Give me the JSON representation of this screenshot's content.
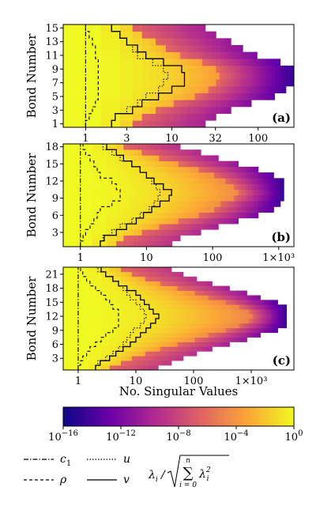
{
  "chart_data": [
    {
      "type": "heatmap",
      "panel_label": "(a)",
      "ylabel": "Bond Number",
      "xscale": "log",
      "xlim": [
        0.55,
        260
      ],
      "ylim": [
        1,
        15
      ],
      "yticks": [
        "1",
        "3",
        "5",
        "7",
        "9",
        "11",
        "13",
        "15"
      ],
      "xticks": [
        {
          "v": 1,
          "label": "1"
        },
        {
          "v": 3,
          "label": "3"
        },
        {
          "v": 10,
          "label": "10"
        },
        {
          "v": 32,
          "label": "32"
        },
        {
          "v": 100,
          "label": "100"
        }
      ],
      "bonds": 15,
      "max_rank": 256,
      "series": {
        "c1": [
          1,
          1,
          1,
          1,
          1,
          1,
          1,
          1,
          1,
          1,
          1,
          1,
          1,
          1,
          1
        ],
        "rho": [
          1,
          1.1,
          1.2,
          1.3,
          1.4,
          1.4,
          1.4,
          1.4,
          1.4,
          1.4,
          1.3,
          1.3,
          1.2,
          1.1,
          1
        ],
        "u": [
          2,
          2.2,
          3,
          4,
          5,
          7,
          8,
          9,
          8,
          6,
          4,
          3.5,
          3,
          2.5,
          2
        ],
        "v": [
          2,
          2.2,
          3.5,
          4.5,
          7,
          10,
          14,
          14,
          13,
          8,
          5,
          4,
          3,
          2.5,
          2
        ],
        "p": [
          3,
          4,
          6,
          10,
          18,
          25,
          32,
          35,
          32,
          22,
          12,
          8,
          6,
          4,
          3
        ]
      }
    },
    {
      "type": "heatmap",
      "panel_label": "(b)",
      "ylabel": "Bond Number",
      "xscale": "log",
      "xlim": [
        0.55,
        1700
      ],
      "ylim": [
        1,
        18
      ],
      "yticks": [
        "3",
        "6",
        "9",
        "12",
        "15",
        "18"
      ],
      "xticks": [
        {
          "v": 1,
          "label": "1"
        },
        {
          "v": 10,
          "label": "10"
        },
        {
          "v": 100,
          "label": "100"
        },
        {
          "v": 1000,
          "label": "1×10³"
        }
      ],
      "bonds": 19,
      "max_rank": 1200,
      "series": {
        "c1": [
          1,
          1,
          1,
          1,
          1,
          1,
          1,
          1,
          1,
          1,
          1,
          1,
          1,
          1,
          1,
          1,
          1,
          1,
          1
        ],
        "rho": [
          1,
          1.1,
          1.2,
          1.4,
          1.6,
          1.8,
          2,
          3,
          4,
          4,
          3.5,
          3,
          2,
          1.8,
          1.6,
          1.4,
          1.2,
          1.1,
          1
        ],
        "u": [
          2,
          2.2,
          3,
          4,
          6,
          8,
          11,
          13,
          15,
          16,
          14,
          12,
          10,
          8,
          6,
          4,
          3,
          2.2,
          2
        ],
        "v": [
          2,
          2.3,
          3.5,
          5,
          7,
          9,
          12,
          16,
          22,
          24,
          18,
          13,
          10,
          8,
          6,
          4.5,
          3.5,
          2.5,
          2
        ],
        "p": [
          3,
          4,
          8,
          15,
          30,
          60,
          100,
          130,
          200,
          240,
          200,
          150,
          100,
          60,
          30,
          15,
          8,
          4,
          3
        ]
      }
    },
    {
      "type": "heatmap",
      "panel_label": "(c)",
      "ylabel": "Bond Number",
      "xscale": "log",
      "xlim": [
        0.55,
        5500
      ],
      "ylim": [
        1,
        22
      ],
      "yticks": [
        "3",
        "6",
        "9",
        "12",
        "15",
        "18",
        "21"
      ],
      "xticks": [
        {
          "v": 1,
          "label": "1"
        },
        {
          "v": 10,
          "label": "10"
        },
        {
          "v": 100,
          "label": "100"
        },
        {
          "v": 1000,
          "label": "1×10³"
        }
      ],
      "xlabel": "No. Singular Values",
      "bonds": 23,
      "max_rank": 4096,
      "series": {
        "c1": [
          1,
          1,
          1,
          1,
          1,
          1,
          1,
          1,
          1,
          1,
          1,
          1,
          1,
          1,
          1,
          1,
          1,
          1,
          1,
          1,
          1,
          1,
          1
        ],
        "rho": [
          1,
          1.1,
          1.2,
          1.4,
          1.6,
          2,
          2.5,
          3,
          4,
          5,
          5,
          5,
          5,
          4,
          3.5,
          3,
          2.5,
          2,
          1.6,
          1.4,
          1.2,
          1.1,
          1
        ],
        "u": [
          2,
          2.2,
          3,
          4,
          5,
          6,
          7,
          8,
          9,
          12,
          14,
          15,
          14,
          12,
          10,
          8,
          7,
          6,
          5,
          4,
          3,
          2.2,
          2
        ],
        "v": [
          2,
          2.4,
          3.5,
          4.5,
          6,
          8,
          10,
          12,
          15,
          18,
          22,
          25,
          20,
          17,
          14,
          12,
          10,
          7,
          5,
          4,
          3,
          2.5,
          2
        ],
        "p": [
          3,
          5,
          8,
          14,
          25,
          50,
          100,
          180,
          350,
          600,
          900,
          1000,
          900,
          600,
          350,
          180,
          100,
          50,
          25,
          14,
          8,
          5,
          3
        ]
      }
    }
  ],
  "colorbar": {
    "colors": [
      "#0d0887",
      "#6a00a8",
      "#b12a90",
      "#e16462",
      "#fca636",
      "#f0f921"
    ],
    "ticks": [
      {
        "exp": -16,
        "label": "10",
        "sup": "−16"
      },
      {
        "exp": -12,
        "label": "10",
        "sup": "−12"
      },
      {
        "exp": -8,
        "label": "10",
        "sup": "−8"
      },
      {
        "exp": -4,
        "label": "10",
        "sup": "−4"
      },
      {
        "exp": 0,
        "label": "10",
        "sup": "0"
      }
    ]
  },
  "legend": {
    "items": [
      {
        "key": "c1",
        "label": "c",
        "sub": "1",
        "dash": "6,2,1.5,2"
      },
      {
        "key": "u",
        "label": "u",
        "sub": "",
        "dash": "1.5,2"
      },
      {
        "key": "rho",
        "label": "ρ",
        "sub": "",
        "dash": "4,3"
      },
      {
        "key": "v",
        "label": "v",
        "sub": "",
        "dash": ""
      }
    ],
    "formula": {
      "lhs": "λ",
      "lhs_sub": "i",
      "slash": "/",
      "sum_upper": "n",
      "sum": "∑",
      "sum_lower": "i = 0",
      "term": "λ",
      "term_sub": "i",
      "term_sup": "2"
    }
  }
}
